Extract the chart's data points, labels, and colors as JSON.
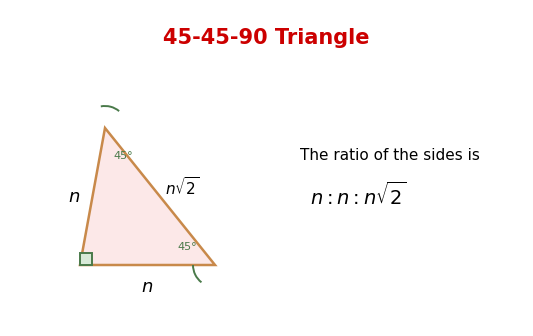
{
  "title": "45-45-90 Triangle",
  "title_color": "#cc0000",
  "title_fontsize": 15,
  "bg_color": "#ffffff",
  "triangle": {
    "fill_color": "#fce8e8",
    "edge_color": "#c8894a",
    "edge_width": 1.8
  },
  "right_angle_color": "#4a7a4a",
  "angle_arc_color": "#4a7a4a",
  "label_45_top_color": "#4a7a4a",
  "label_45_bot_color": "#4a7a4a",
  "ratio_text": "The ratio of the sides is",
  "ratio_formula": "$n : n : n\\sqrt{2}$"
}
